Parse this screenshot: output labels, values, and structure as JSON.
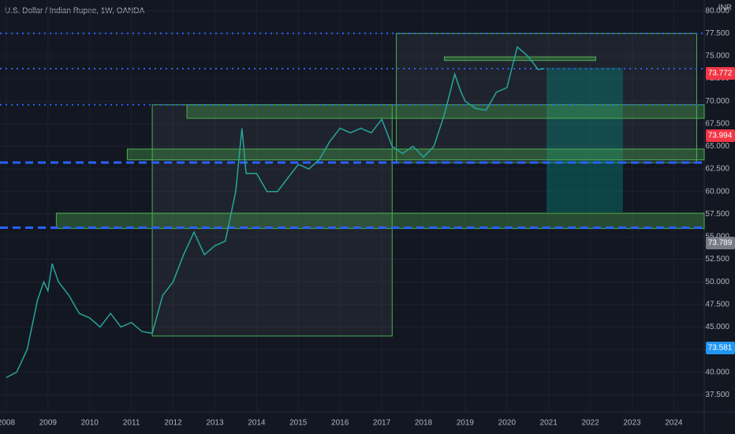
{
  "chart_data": {
    "type": "line",
    "title": "U.S. Dollar / Indian Rupee, 1W, OANDA",
    "currency": "INR",
    "xlim": [
      2007.85,
      2024.73
    ],
    "ylim": [
      35.6,
      81.2
    ],
    "xticks": [
      2008,
      2009,
      2010,
      2011,
      2012,
      2013,
      2014,
      2015,
      2016,
      2017,
      2018,
      2019,
      2020,
      2021,
      2022,
      2023,
      2024
    ],
    "yticks": [
      {
        "value": 37.5,
        "label": "37.500"
      },
      {
        "value": 40,
        "label": "40.000"
      },
      {
        "value": 42.5,
        "label": "42.500"
      },
      {
        "value": 45,
        "label": "45.000"
      },
      {
        "value": 47.5,
        "label": "47.500"
      },
      {
        "value": 50,
        "label": "50.000"
      },
      {
        "value": 52.5,
        "label": "52.500"
      },
      {
        "value": 55,
        "label": "55.000"
      },
      {
        "value": 57.5,
        "label": "57.500"
      },
      {
        "value": 60,
        "label": "60.000"
      },
      {
        "value": 62.5,
        "label": "62.500"
      },
      {
        "value": 65,
        "label": "65.000"
      },
      {
        "value": 67.5,
        "label": "67.500"
      },
      {
        "value": 70,
        "label": "70.000"
      },
      {
        "value": 72.5,
        "label": "72.500"
      },
      {
        "value": 75,
        "label": "75.000"
      },
      {
        "value": 77.5,
        "label": "77.500"
      },
      {
        "value": 80,
        "label": "80.000"
      }
    ],
    "grid": true,
    "series": [
      {
        "name": "USDINR",
        "color": "#26a69a",
        "x": [
          2008.0,
          2008.25,
          2008.5,
          2008.75,
          2008.9,
          2009.0,
          2009.1,
          2009.25,
          2009.5,
          2009.75,
          2010.0,
          2010.25,
          2010.5,
          2010.75,
          2011.0,
          2011.25,
          2011.5,
          2011.75,
          2012.0,
          2012.25,
          2012.5,
          2012.75,
          2013.0,
          2013.25,
          2013.5,
          2013.65,
          2013.75,
          2014.0,
          2014.25,
          2014.5,
          2014.75,
          2015.0,
          2015.25,
          2015.5,
          2015.75,
          2016.0,
          2016.25,
          2016.5,
          2016.75,
          2017.0,
          2017.25,
          2017.5,
          2017.75,
          2018.0,
          2018.25,
          2018.5,
          2018.75,
          2018.9,
          2019.0,
          2019.25,
          2019.5,
          2019.75,
          2020.0,
          2020.25,
          2020.5,
          2020.75,
          2020.9
        ],
        "values": [
          39.4,
          40,
          42.5,
          48,
          50,
          49,
          52,
          50,
          48.5,
          46.5,
          46,
          45,
          46.5,
          45,
          45.5,
          44.5,
          44.3,
          48.5,
          50,
          53,
          55.5,
          53,
          54,
          54.5,
          60,
          67,
          62,
          62,
          60,
          60,
          61.5,
          63,
          62.5,
          63.5,
          65.5,
          67,
          66.5,
          67,
          66.5,
          68,
          65,
          64.2,
          65,
          63.8,
          65,
          68.5,
          73,
          71,
          70,
          69.2,
          69,
          71,
          71.5,
          76,
          75,
          73.5,
          73.6
        ]
      }
    ],
    "levels": [
      {
        "value": 77.5,
        "style": "dotted",
        "color": "#2962ff"
      },
      {
        "value": 73.6,
        "style": "dotted",
        "color": "#2962ff"
      },
      {
        "value": 69.6,
        "style": "dotted",
        "color": "#2962ff"
      },
      {
        "value": 63.2,
        "style": "dashed",
        "color": "#2962ff"
      },
      {
        "value": 56.0,
        "style": "dashed",
        "color": "#2962ff"
      }
    ],
    "zones": [
      {
        "kind": "box",
        "x0": 2011.5,
        "x1": 2017.25,
        "y0": 44.0,
        "y1": 69.6
      },
      {
        "kind": "box",
        "x0": 2017.35,
        "x1": 2024.55,
        "y0": 63.2,
        "y1": 77.5
      },
      {
        "kind": "target",
        "x0": 2020.95,
        "x1": 2022.78,
        "y0": 57.7,
        "y1": 73.7
      },
      {
        "kind": "green",
        "x0": 2012.33,
        "x1": 2024.73,
        "y0": 68.1,
        "y1": 69.6
      },
      {
        "kind": "green",
        "x0": 2010.9,
        "x1": 2024.73,
        "y0": 63.5,
        "y1": 64.7
      },
      {
        "kind": "green",
        "x0": 2009.2,
        "x1": 2024.73,
        "y0": 55.9,
        "y1": 57.6
      },
      {
        "kind": "green",
        "x0": 2018.5,
        "x1": 2022.13,
        "y0": 74.5,
        "y1": 74.9
      }
    ],
    "price_tags": [
      {
        "text": "73.772",
        "color": "#f23645"
      },
      {
        "text": "73.994",
        "color": "#f23645"
      },
      {
        "text": "73.789",
        "color": "#787b86"
      },
      {
        "text": "73.581",
        "color": "#2196f3"
      }
    ]
  }
}
